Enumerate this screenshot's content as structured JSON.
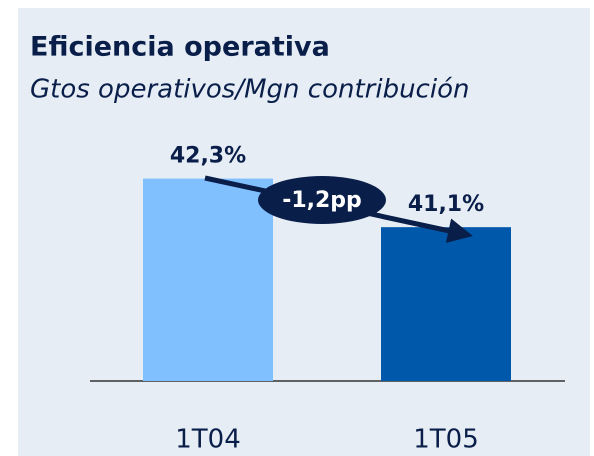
{
  "chart_data": {
    "type": "bar",
    "title": "Eficiencia operativa",
    "subtitle": "Gtos operativos/Mgn contribución",
    "categories": [
      "1T04",
      "1T05"
    ],
    "series": [
      {
        "values": [
          42.3,
          41.1
        ],
        "value_labels": [
          "42,3%",
          "41,1%"
        ],
        "colors": [
          "#80c0ff",
          "#0058aa"
        ]
      }
    ],
    "ylim": [
      37.3,
      43.5
    ],
    "annotation": "-1,2pp"
  }
}
